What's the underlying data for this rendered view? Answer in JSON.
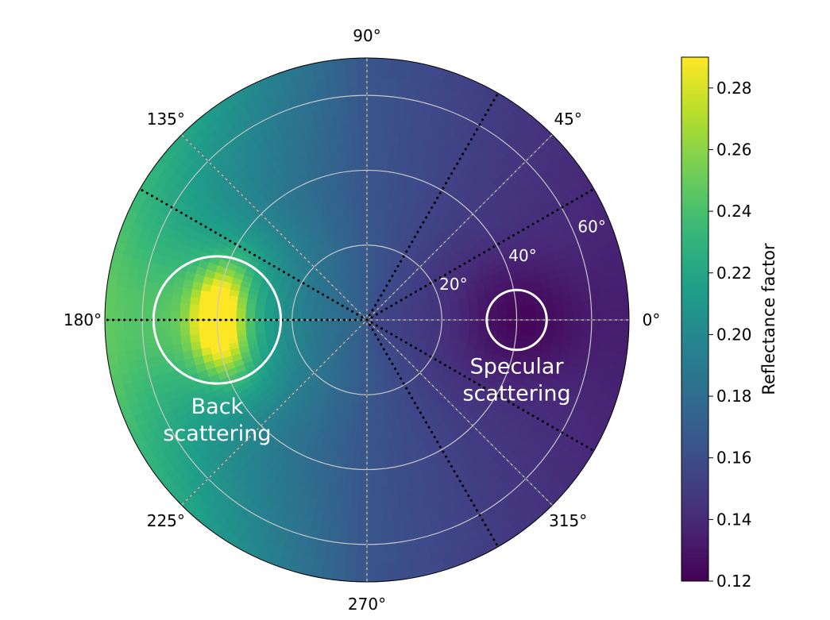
{
  "chart_data": {
    "type": "heatmap",
    "projection": "polar",
    "title": "",
    "theta_tick_labels": [
      {
        "angle": 0,
        "label": "0°"
      },
      {
        "angle": 45,
        "label": "45°"
      },
      {
        "angle": 90,
        "label": "90°"
      },
      {
        "angle": 135,
        "label": "135°"
      },
      {
        "angle": 180,
        "label": "180°"
      },
      {
        "angle": 225,
        "label": "225°"
      },
      {
        "angle": 270,
        "label": "270°"
      },
      {
        "angle": 315,
        "label": "315°"
      }
    ],
    "radial_tick_labels": [
      {
        "r": 20,
        "label": "20°"
      },
      {
        "r": 40,
        "label": "40°"
      },
      {
        "r": 60,
        "label": "60°"
      }
    ],
    "r_max": 70,
    "dashed_spokes_deg": [
      0,
      45,
      90,
      135,
      180,
      225,
      270,
      315
    ],
    "dotted_spokes_deg": [
      30,
      60,
      150,
      180,
      300,
      330
    ],
    "colorbar": {
      "label": "Reflectance factor",
      "min": 0.12,
      "max": 0.29,
      "ticks": [
        "0.12",
        "0.14",
        "0.16",
        "0.18",
        "0.20",
        "0.22",
        "0.24",
        "0.26",
        "0.28"
      ],
      "tick_values": [
        0.12,
        0.14,
        0.16,
        0.18,
        0.2,
        0.22,
        0.24,
        0.26,
        0.28
      ],
      "colormap": "viridis"
    },
    "field_model": {
      "base": 0.165,
      "azimuth_cos_term": -0.03,
      "hotspot": {
        "theta": 180,
        "r": 40,
        "peak": 0.29,
        "width_deg": 12
      },
      "specular_dip": {
        "theta": 0,
        "r": 40,
        "depth": 0.02
      }
    },
    "annotations": [
      {
        "text_lines": [
          "Back",
          "scattering"
        ],
        "circle_theta": 180,
        "circle_r": 40,
        "circle_radius_deg": 17
      },
      {
        "text_lines": [
          "Specular",
          "scattering"
        ],
        "circle_theta": 0,
        "circle_r": 40,
        "circle_radius_deg": 8
      }
    ],
    "grid": true
  },
  "colors": {
    "background": "#ffffff",
    "grid": "#c8c8c8",
    "annotation": "#ffffff",
    "spoke": "#000000"
  }
}
